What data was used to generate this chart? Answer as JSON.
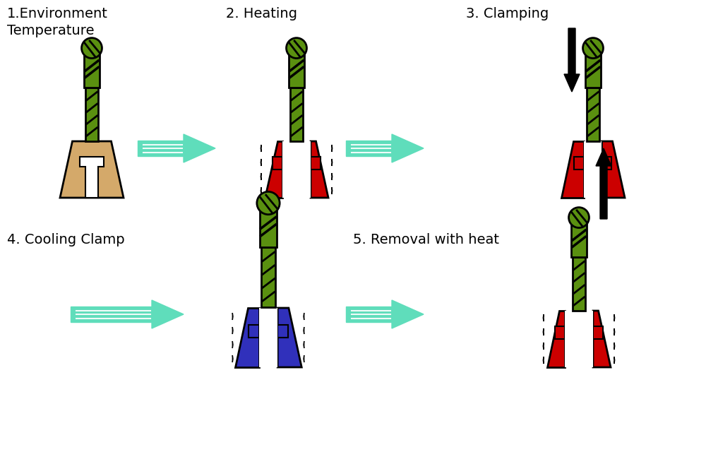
{
  "arrow_color": "#5FDDBB",
  "black": "#000000",
  "red": "#CC0000",
  "blue": "#3030BB",
  "tan": "#D4A96A",
  "green": "#5A9010",
  "white": "#FFFFFF",
  "bg": "#FFFFFF",
  "label1": "1.Environment\nTemperature",
  "label2": "2. Heating",
  "label3": "3. Clamping",
  "label4": "4. Cooling Clamp",
  "label5": "5. Removal with heat"
}
